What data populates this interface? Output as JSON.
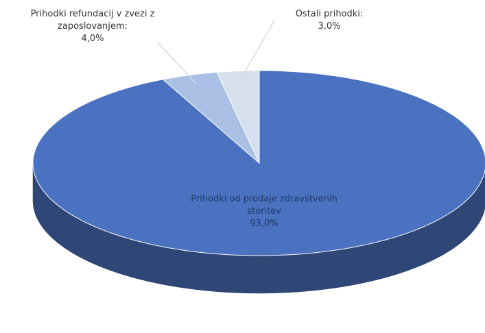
{
  "chart_data": {
    "type": "pie3d",
    "categories": [
      "Prihodki od prodaje zdravstvenih storitev",
      "Prihodki refundacij v zvezi z zaposlovanjem:",
      "Ostali prihodki:"
    ],
    "values": [
      93,
      4,
      3
    ],
    "value_labels": [
      "93,0%",
      "4,0%",
      "3,0%"
    ],
    "colors": [
      "#4a72c0",
      "#a9bfe3",
      "#d6dfee"
    ]
  }
}
